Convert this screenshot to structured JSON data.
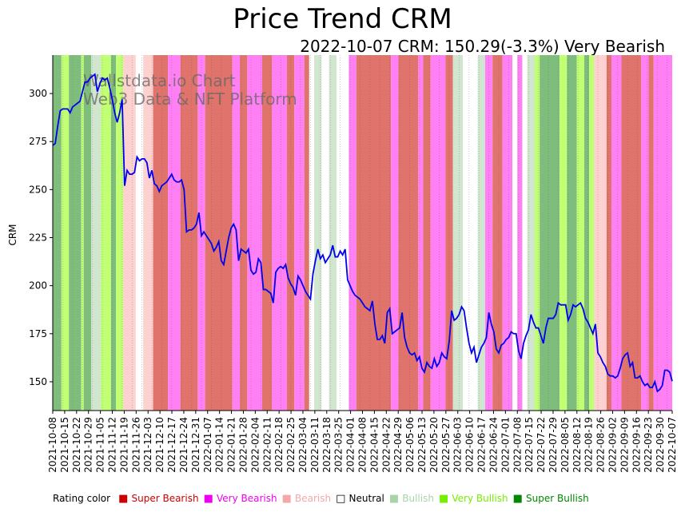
{
  "chart_data": {
    "type": "line",
    "title": "Price Trend CRM",
    "subtitle": "2022-10-07 CRM: 150.29(-3.3%) Very Bearish",
    "ylabel": "CRM",
    "xlabel": "",
    "ylim": [
      135,
      320
    ],
    "yticks": [
      150,
      175,
      200,
      225,
      250,
      275,
      300
    ],
    "watermark": [
      "Wallstdata.io Chart",
      "Web3 Data & NFT Platform"
    ],
    "date_start": "2021-10-08",
    "date_end": "2022-10-07",
    "xtick_labels": [
      "2021-10-08",
      "2021-10-15",
      "2021-10-22",
      "2021-10-29",
      "2021-11-05",
      "2021-11-12",
      "2021-11-19",
      "2021-11-26",
      "2021-12-03",
      "2021-12-10",
      "2021-12-17",
      "2021-12-24",
      "2021-12-31",
      "2022-01-07",
      "2022-01-14",
      "2022-01-21",
      "2022-01-28",
      "2022-02-04",
      "2022-02-11",
      "2022-02-18",
      "2022-02-25",
      "2022-03-04",
      "2022-03-11",
      "2022-03-18",
      "2022-03-25",
      "2022-04-01",
      "2022-04-08",
      "2022-04-15",
      "2022-04-22",
      "2022-04-29",
      "2022-05-06",
      "2022-05-13",
      "2022-05-20",
      "2022-05-27",
      "2022-06-03",
      "2022-06-10",
      "2022-06-17",
      "2022-06-24",
      "2022-07-01",
      "2022-07-08",
      "2022-07-15",
      "2022-07-22",
      "2022-07-29",
      "2022-08-05",
      "2022-08-12",
      "2022-08-19",
      "2022-08-26",
      "2022-09-02",
      "2022-09-09",
      "2022-09-16",
      "2022-09-23",
      "2022-09-30",
      "2022-10-07"
    ],
    "series": [
      {
        "name": "CRM",
        "color": "#0000ee",
        "values": [
          273,
          274,
          283,
          291,
          292,
          292,
          292,
          290,
          293,
          294,
          295,
          296,
          301,
          306,
          306,
          308,
          309,
          310,
          301,
          305,
          308,
          307,
          308,
          303,
          297,
          290,
          285,
          290,
          297,
          252,
          260,
          258,
          258,
          259,
          267,
          265,
          266,
          266,
          264,
          256,
          260,
          253,
          252,
          249,
          252,
          253,
          254,
          256,
          258,
          255,
          254,
          254,
          255,
          250,
          228,
          229,
          229,
          230,
          232,
          238,
          226,
          228,
          226,
          224,
          222,
          218,
          220,
          223,
          213,
          211,
          218,
          225,
          230,
          232,
          229,
          213,
          219,
          218,
          217,
          219,
          208,
          206,
          207,
          214,
          212,
          198,
          198,
          197,
          196,
          191,
          207,
          209,
          210,
          209,
          211,
          204,
          201,
          199,
          195,
          205,
          203,
          200,
          197,
          195,
          193,
          206,
          213,
          219,
          214,
          216,
          212,
          214,
          216,
          221,
          215,
          215,
          218,
          216,
          219,
          203,
          200,
          197,
          195,
          194,
          193,
          191,
          189,
          188,
          187,
          192,
          180,
          172,
          172,
          174,
          170,
          186,
          188,
          175,
          176,
          177,
          178,
          186,
          173,
          168,
          165,
          164,
          165,
          161,
          163,
          157,
          155,
          160,
          158,
          157,
          162,
          158,
          160,
          165,
          163,
          162,
          171,
          187,
          182,
          183,
          185,
          189,
          187,
          178,
          170,
          165,
          168,
          160,
          164,
          168,
          170,
          173,
          186,
          180,
          176,
          167,
          165,
          169,
          170,
          172,
          173,
          176,
          175,
          175,
          166,
          162,
          170,
          174,
          177,
          185,
          181,
          178,
          178,
          174,
          170,
          178,
          183,
          183,
          183,
          185,
          191,
          190,
          190,
          190,
          182,
          185,
          190,
          189,
          190,
          191,
          188,
          183,
          181,
          178,
          175,
          180,
          165,
          163,
          160,
          158,
          154,
          153,
          153,
          152,
          153,
          157,
          162,
          164,
          165,
          158,
          160,
          152,
          152,
          153,
          150,
          148,
          149,
          147,
          147,
          150,
          145,
          146,
          148,
          156,
          156,
          155,
          150.29
        ]
      }
    ],
    "rating_bands": [
      {
        "start": 0,
        "end": 4,
        "rating": "super-bullish"
      },
      {
        "start": 4,
        "end": 7,
        "rating": "very-bullish"
      },
      {
        "start": 7,
        "end": 12,
        "rating": "super-bullish"
      },
      {
        "start": 12,
        "end": 13,
        "rating": "very-bullish"
      },
      {
        "start": 13,
        "end": 16,
        "rating": "super-bullish"
      },
      {
        "start": 16,
        "end": 20,
        "rating": "bullish"
      },
      {
        "start": 20,
        "end": 24,
        "rating": "very-bullish"
      },
      {
        "start": 24,
        "end": 26,
        "rating": "super-bullish"
      },
      {
        "start": 26,
        "end": 29,
        "rating": "very-bullish"
      },
      {
        "start": 29,
        "end": 34,
        "rating": "bearish"
      },
      {
        "start": 34,
        "end": 37,
        "rating": "neutral"
      },
      {
        "start": 37,
        "end": 41,
        "rating": "bearish"
      },
      {
        "start": 41,
        "end": 47,
        "rating": "super-bearish"
      },
      {
        "start": 47,
        "end": 52,
        "rating": "very-bearish"
      },
      {
        "start": 52,
        "end": 59,
        "rating": "super-bearish"
      },
      {
        "start": 59,
        "end": 62,
        "rating": "very-bearish"
      },
      {
        "start": 62,
        "end": 73,
        "rating": "super-bearish"
      },
      {
        "start": 73,
        "end": 76,
        "rating": "very-bearish"
      },
      {
        "start": 76,
        "end": 79,
        "rating": "super-bearish"
      },
      {
        "start": 79,
        "end": 85,
        "rating": "very-bearish"
      },
      {
        "start": 85,
        "end": 89,
        "rating": "super-bearish"
      },
      {
        "start": 89,
        "end": 95,
        "rating": "very-bearish"
      },
      {
        "start": 95,
        "end": 98,
        "rating": "super-bearish"
      },
      {
        "start": 98,
        "end": 102,
        "rating": "very-bearish"
      },
      {
        "start": 102,
        "end": 104,
        "rating": "super-bearish"
      },
      {
        "start": 104,
        "end": 106,
        "rating": "neutral"
      },
      {
        "start": 106,
        "end": 109,
        "rating": "bullish"
      },
      {
        "start": 109,
        "end": 112,
        "rating": "neutral"
      },
      {
        "start": 112,
        "end": 115,
        "rating": "bullish"
      },
      {
        "start": 115,
        "end": 120,
        "rating": "neutral"
      },
      {
        "start": 120,
        "end": 123,
        "rating": "very-bearish"
      },
      {
        "start": 123,
        "end": 137,
        "rating": "super-bearish"
      },
      {
        "start": 137,
        "end": 140,
        "rating": "very-bearish"
      },
      {
        "start": 140,
        "end": 148,
        "rating": "super-bearish"
      },
      {
        "start": 148,
        "end": 150,
        "rating": "very-bearish"
      },
      {
        "start": 150,
        "end": 153,
        "rating": "super-bearish"
      },
      {
        "start": 153,
        "end": 159,
        "rating": "very-bearish"
      },
      {
        "start": 159,
        "end": 162,
        "rating": "super-bearish"
      },
      {
        "start": 162,
        "end": 166,
        "rating": "bullish"
      },
      {
        "start": 166,
        "end": 172,
        "rating": "neutral"
      },
      {
        "start": 172,
        "end": 175,
        "rating": "bullish"
      },
      {
        "start": 175,
        "end": 178,
        "rating": "very-bearish"
      },
      {
        "start": 178,
        "end": 182,
        "rating": "super-bearish"
      },
      {
        "start": 182,
        "end": 186,
        "rating": "very-bearish"
      },
      {
        "start": 186,
        "end": 188,
        "rating": "neutral"
      },
      {
        "start": 188,
        "end": 190,
        "rating": "very-bearish"
      },
      {
        "start": 190,
        "end": 192,
        "rating": "neutral"
      },
      {
        "start": 192,
        "end": 195,
        "rating": "bullish"
      },
      {
        "start": 195,
        "end": 197,
        "rating": "very-bullish"
      },
      {
        "start": 197,
        "end": 205,
        "rating": "super-bullish"
      },
      {
        "start": 205,
        "end": 208,
        "rating": "very-bullish"
      },
      {
        "start": 208,
        "end": 212,
        "rating": "super-bullish"
      },
      {
        "start": 212,
        "end": 215,
        "rating": "very-bullish"
      },
      {
        "start": 215,
        "end": 217,
        "rating": "super-bullish"
      },
      {
        "start": 217,
        "end": 219,
        "rating": "very-bullish"
      },
      {
        "start": 219,
        "end": 224,
        "rating": "bearish"
      },
      {
        "start": 224,
        "end": 226,
        "rating": "super-bearish"
      },
      {
        "start": 226,
        "end": 230,
        "rating": "very-bearish"
      },
      {
        "start": 230,
        "end": 238,
        "rating": "super-bearish"
      },
      {
        "start": 238,
        "end": 241,
        "rating": "very-bearish"
      },
      {
        "start": 241,
        "end": 243,
        "rating": "super-bearish"
      },
      {
        "start": 243,
        "end": 252,
        "rating": "very-bearish"
      }
    ]
  },
  "rating_colors": {
    "super-bearish": "#e0736b",
    "very-bearish": "#ff7ff4",
    "bearish": "#fcd1cf",
    "neutral": "#ffffff",
    "bullish": "#d1e6cf",
    "very-bullish": "#c1ff73",
    "super-bullish": "#7fbd7c"
  },
  "legend": {
    "title": "Rating color",
    "items": [
      {
        "label": "Super Bearish",
        "color": "#cc0000"
      },
      {
        "label": "Very Bearish",
        "color": "#ee00ee"
      },
      {
        "label": "Bearish",
        "color": "#f4a8a8"
      },
      {
        "label": "Neutral",
        "color": "#000000"
      },
      {
        "label": "Bullish",
        "color": "#a8d4a8"
      },
      {
        "label": "Very Bullish",
        "color": "#77ee00"
      },
      {
        "label": "Super Bullish",
        "color": "#008800"
      }
    ]
  }
}
